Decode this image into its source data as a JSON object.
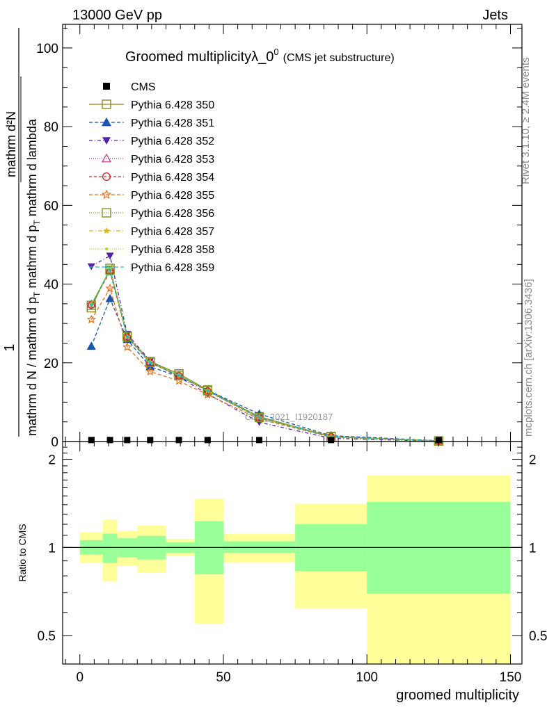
{
  "header": {
    "left": "13000 GeV pp",
    "right": "Jets"
  },
  "side_labels": {
    "rivet": "Rivet 3.1.10, ≥ 2.4M events",
    "mcplots": "mcplots.cern.ch [arXiv:1306.3436]"
  },
  "watermark": "CMS_2021_I1920187",
  "chart_data": [
    {
      "type": "line",
      "panel": "main",
      "title_main": "Groomed multiplicityλ_0",
      "title_sup": "0",
      "title_sub": "(CMS jet substructure)",
      "xlabel": "groomed multiplicity",
      "ylabel_top": "1",
      "ylabel_num": "mathrm d²N",
      "ylabel_den_a": "mathrm d N / mathrm d p",
      "ylabel_den_b": "T",
      "ylabel_den_c": " mathrm d p",
      "ylabel_den_d": "T",
      "ylabel_den_e": " mathrm d lambda",
      "xlim": [
        -6,
        154
      ],
      "ylim": [
        0,
        106
      ],
      "yticks": [
        0,
        20,
        40,
        60,
        80,
        100
      ],
      "xticks": [
        0,
        50,
        100,
        150
      ],
      "legend_position": "top-left",
      "data_series": {
        "name": "CMS",
        "x": [
          4,
          10.5,
          16.5,
          24.5,
          34.5,
          44.5,
          62.5,
          87.5,
          125
        ],
        "y": [
          0.2,
          0.2,
          0.2,
          0.2,
          0.2,
          0.2,
          0.2,
          0.2,
          0.2
        ]
      },
      "x_points": [
        4,
        10.5,
        16.5,
        24.5,
        34.5,
        44.5,
        62.5,
        87.5,
        125
      ],
      "series": [
        {
          "name": "Pythia 6.428 350",
          "color": "#8a8a1e",
          "marker": "open-square",
          "dash": "",
          "values": [
            34.0,
            44.0,
            26.8,
            20.3,
            17.2,
            13.1,
            6.3,
            1.3,
            0.15
          ]
        },
        {
          "name": "Pythia 6.428 351",
          "color": "#1a55b0",
          "marker": "filled-triangle-up",
          "dash": "5,3",
          "values": [
            24.2,
            36.3,
            25.9,
            19.0,
            16.5,
            13.0,
            7.0,
            1.5,
            0.2
          ]
        },
        {
          "name": "Pythia 6.428 352",
          "color": "#5522aa",
          "marker": "filled-triangle-down",
          "dash": "5,3,1,3",
          "values": [
            44.5,
            47.2,
            27.3,
            20.5,
            16.4,
            12.1,
            4.9,
            0.8,
            0.1
          ]
        },
        {
          "name": "Pythia 6.428 353",
          "color": "#c0308a",
          "marker": "open-triangle-up",
          "dash": "1,2",
          "values": [
            34.9,
            43.5,
            26.7,
            20.1,
            16.7,
            12.8,
            6.0,
            1.2,
            0.15
          ]
        },
        {
          "name": "Pythia 6.428 354",
          "color": "#d02020",
          "marker": "open-circle",
          "dash": "4,3",
          "values": [
            34.7,
            43.2,
            26.5,
            20.0,
            16.7,
            12.8,
            6.0,
            1.2,
            0.15
          ]
        },
        {
          "name": "Pythia 6.428 355",
          "color": "#e8701a",
          "marker": "open-star",
          "dash": "5,3",
          "values": [
            31.0,
            38.9,
            24.0,
            17.8,
            15.4,
            11.9,
            5.7,
            1.1,
            0.15
          ]
        },
        {
          "name": "Pythia 6.428 356",
          "color": "#7a9a1a",
          "marker": "open-square",
          "dash": "1,2",
          "values": [
            34.6,
            43.5,
            26.6,
            20.1,
            16.8,
            12.9,
            6.1,
            1.2,
            0.15
          ]
        },
        {
          "name": "Pythia 6.428 357",
          "color": "#d8b81a",
          "marker": "filled-star-small",
          "dash": "6,3,1,3",
          "values": [
            34.8,
            43.7,
            26.6,
            20.2,
            16.8,
            12.9,
            6.1,
            1.2,
            0.15
          ]
        },
        {
          "name": "Pythia 6.428 358",
          "color": "#b8d81a",
          "marker": "small-dot",
          "dash": "1,2",
          "values": [
            34.8,
            43.8,
            26.6,
            20.2,
            16.8,
            12.9,
            6.1,
            1.2,
            0.15
          ]
        },
        {
          "name": "Pythia 6.428 359",
          "color": "#20c0a0",
          "marker": "small-dot",
          "dash": "6,3",
          "values": [
            34.7,
            43.6,
            26.6,
            20.1,
            16.8,
            12.9,
            6.1,
            1.2,
            0.15
          ]
        }
      ]
    },
    {
      "type": "area",
      "panel": "ratio",
      "ylabel": "Ratio to CMS",
      "ylim": [
        0.4,
        2.3
      ],
      "log_y": true,
      "yticks": [
        0.5,
        1,
        2
      ],
      "reference_line": 1,
      "bins": [
        {
          "xlo": 0,
          "xhi": 8,
          "inner": [
            0.945,
            1.06
          ],
          "outer": [
            0.885,
            1.125
          ]
        },
        {
          "xlo": 8,
          "xhi": 13,
          "inner": [
            0.885,
            1.115
          ],
          "outer": [
            0.765,
            1.245
          ]
        },
        {
          "xlo": 13,
          "xhi": 20,
          "inner": [
            0.925,
            1.075
          ],
          "outer": [
            0.865,
            1.14
          ]
        },
        {
          "xlo": 20,
          "xhi": 30,
          "inner": [
            0.91,
            1.095
          ],
          "outer": [
            0.82,
            1.19
          ]
        },
        {
          "xlo": 30,
          "xhi": 40,
          "inner": [
            0.96,
            1.04
          ],
          "outer": [
            0.935,
            1.07
          ]
        },
        {
          "xlo": 40,
          "xhi": 50,
          "inner": [
            0.81,
            1.23
          ],
          "outer": [
            0.55,
            1.465
          ]
        },
        {
          "xlo": 50,
          "xhi": 75,
          "inner": [
            0.96,
            1.05
          ],
          "outer": [
            0.89,
            1.115
          ]
        },
        {
          "xlo": 75,
          "xhi": 100,
          "inner": [
            0.83,
            1.2
          ],
          "outer": [
            0.62,
            1.41
          ]
        },
        {
          "xlo": 100,
          "xhi": 150,
          "inner": [
            0.695,
            1.43
          ],
          "outer": [
            0.4,
            1.76
          ]
        }
      ],
      "inner_color": "#99ff99",
      "outer_color": "#ffff99"
    }
  ]
}
